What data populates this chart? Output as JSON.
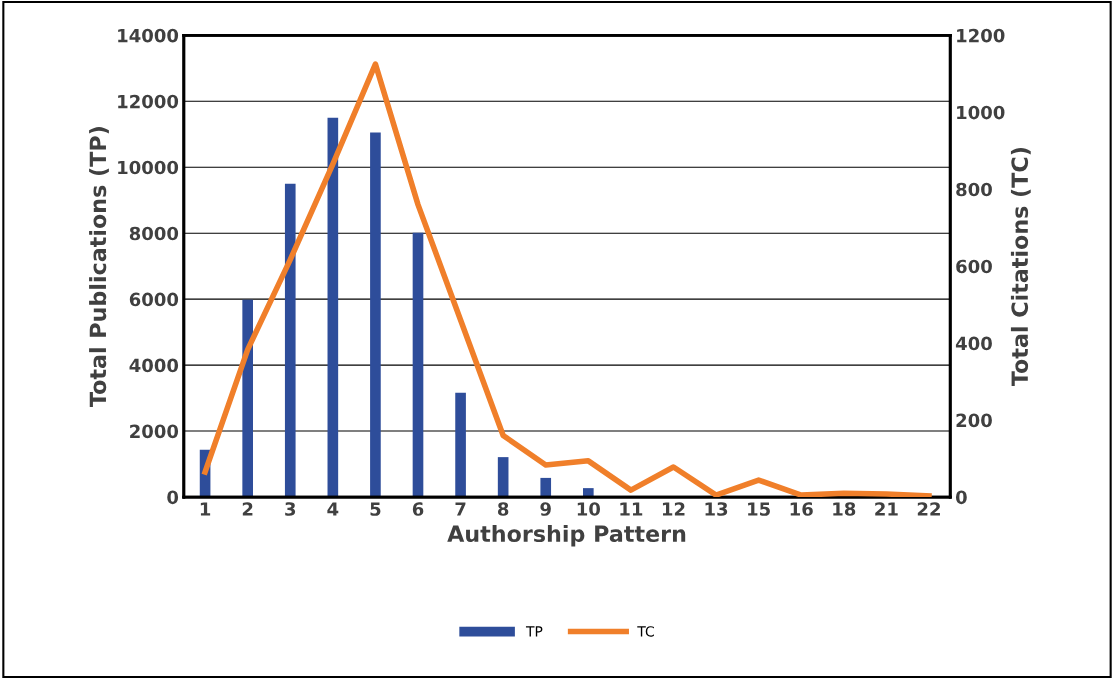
{
  "chart_data": {
    "type": "bar",
    "xlabel": "Authorship Pattern",
    "ylabel": "Total Publications (TP)",
    "y2label": "Total Citations (TC)",
    "categories": [
      "1",
      "2",
      "3",
      "4",
      "5",
      "6",
      "7",
      "8",
      "9",
      "10",
      "11",
      "12",
      "13",
      "15",
      "16",
      "18",
      "21",
      "22"
    ],
    "series": [
      {
        "name": "TP",
        "color": "#2e4d9a",
        "values": [
          1430,
          5980,
          9500,
          11500,
          11050,
          8010,
          3160,
          1210,
          580,
          270,
          0,
          0,
          0,
          0,
          0,
          0,
          0,
          0
        ]
      },
      {
        "name": "TC",
        "type": "line",
        "axis": "y2",
        "color": "#f07f2a",
        "values": [
          65,
          383,
          617,
          865,
          1125,
          760,
          460,
          160,
          83,
          94,
          18,
          78,
          5,
          44,
          5,
          10,
          8,
          3
        ]
      }
    ],
    "ylim": [
      0,
      14000
    ],
    "yticks": [
      0,
      2000,
      4000,
      6000,
      8000,
      10000,
      12000,
      14000
    ],
    "y2lim": [
      0,
      1200
    ],
    "y2ticks": [
      0,
      200,
      400,
      600,
      800,
      1000,
      1200
    ],
    "grid": "y",
    "legend": "bottom",
    "marker": "none",
    "line_style": "solid"
  }
}
